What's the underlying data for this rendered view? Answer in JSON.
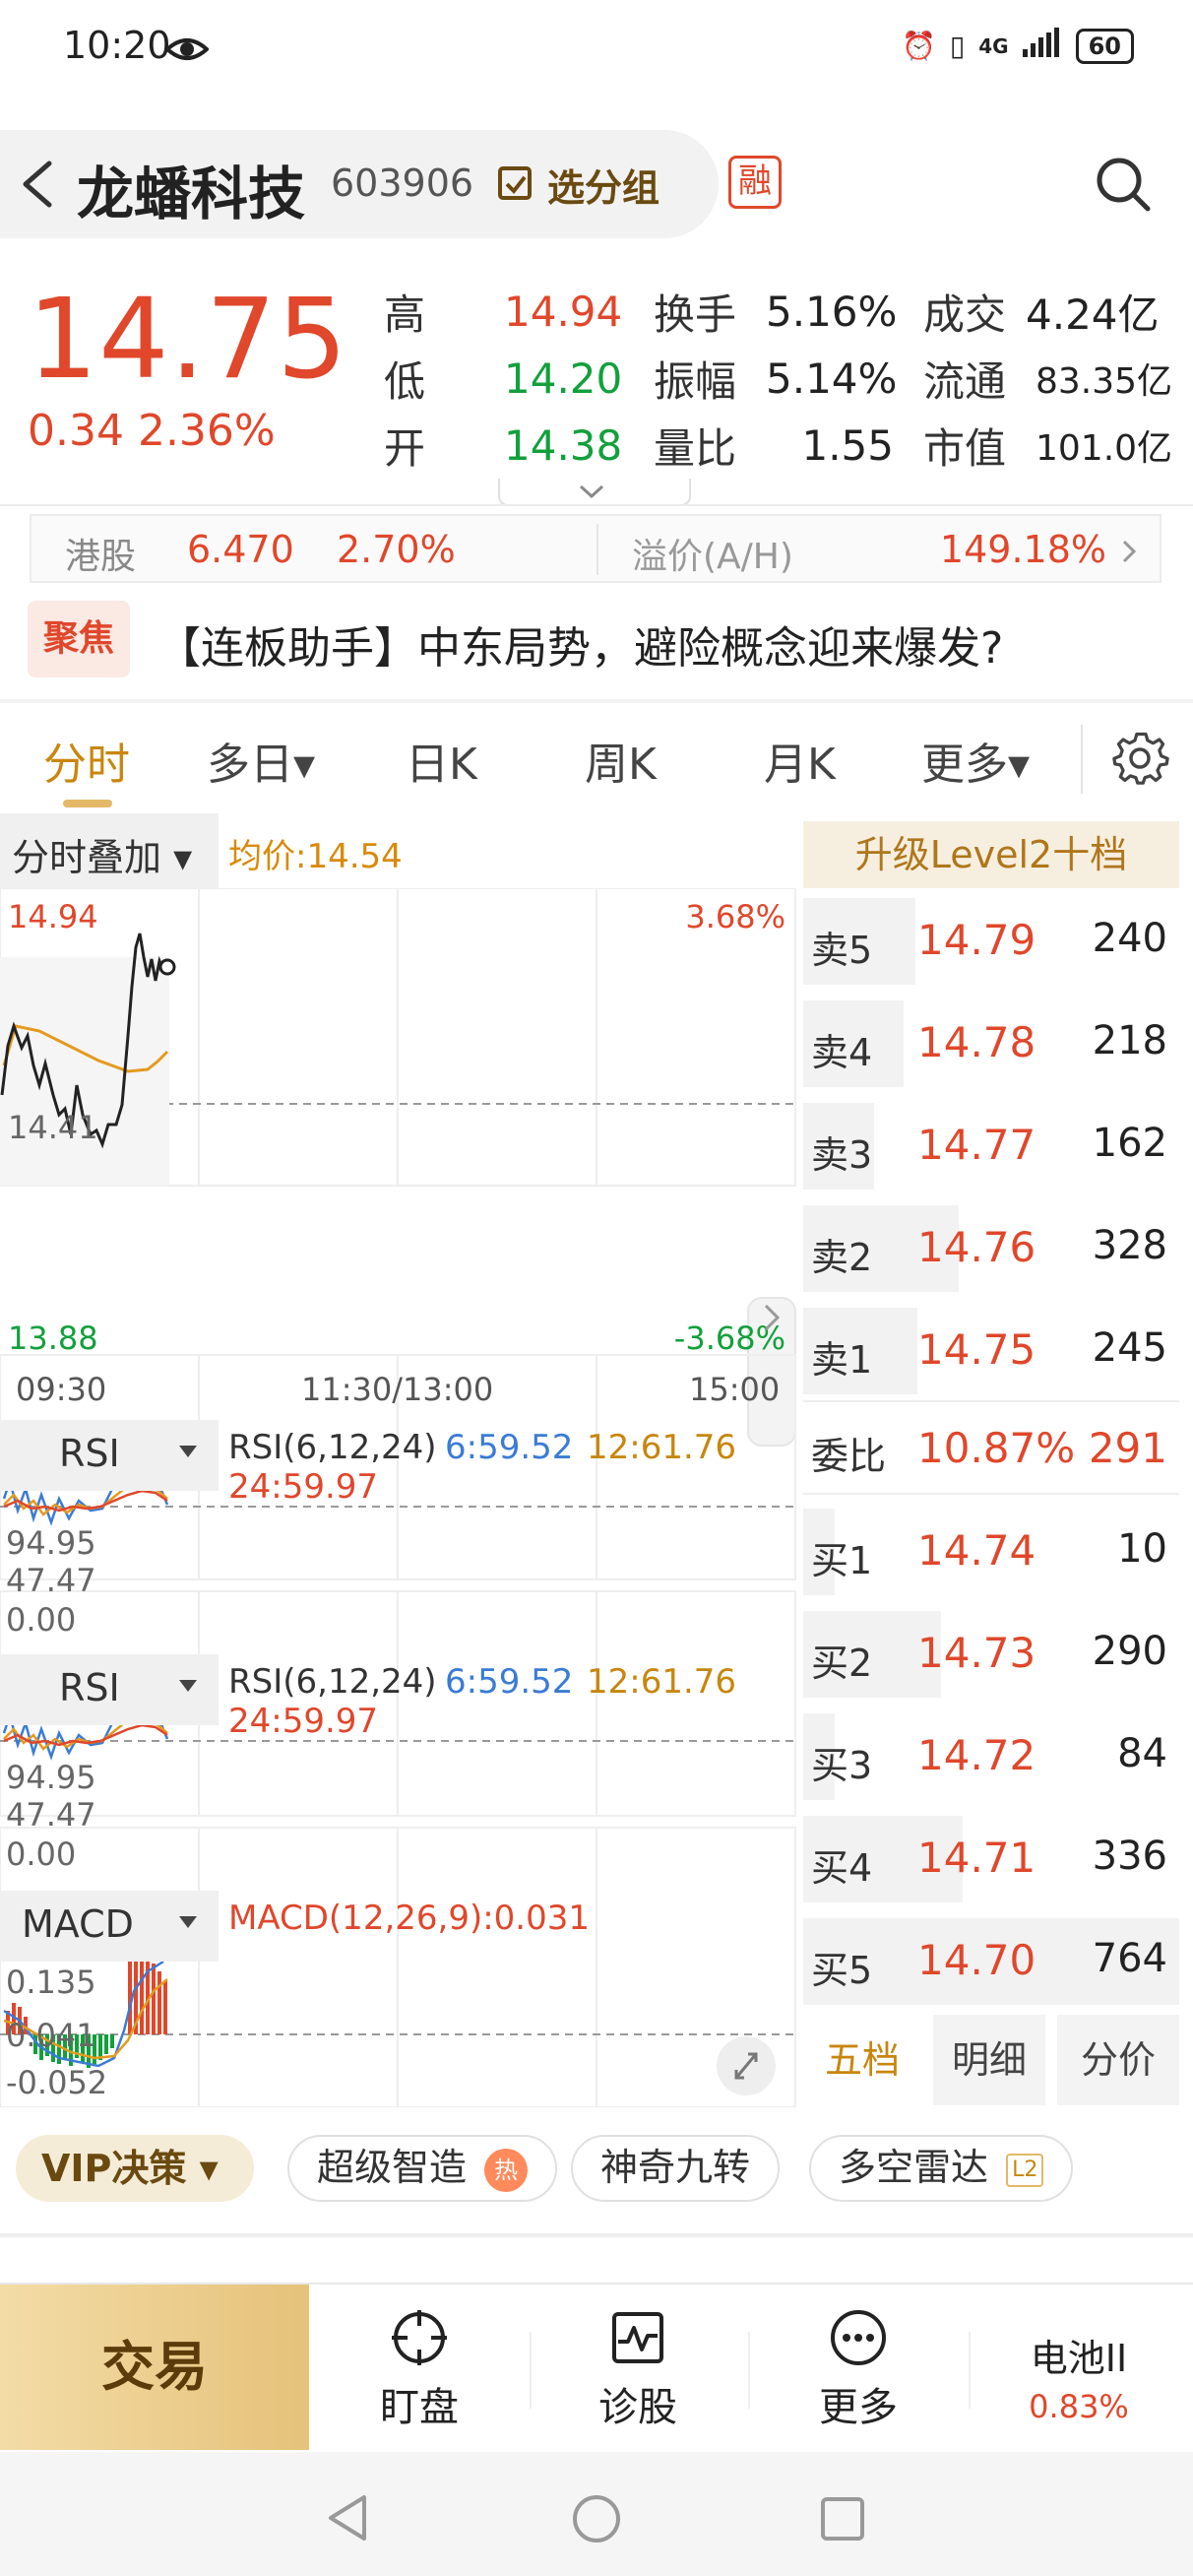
{
  "status_bar": {
    "time": "10:20",
    "network": "4G",
    "battery": "60"
  },
  "header": {
    "stock_name": "龙蟠科技",
    "stock_code": "603906",
    "group_label": "选分组",
    "margin_badge": "融"
  },
  "quote": {
    "price": "14.75",
    "change": "0.34  2.36%",
    "stats": [
      {
        "label": "高",
        "value": "14.94",
        "color": "#e0472b"
      },
      {
        "label": "低",
        "value": "14.20",
        "color": "#12a03c"
      },
      {
        "label": "开",
        "value": "14.38",
        "color": "#12a03c"
      }
    ],
    "stats2": [
      {
        "label": "换手",
        "value": "5.16%"
      },
      {
        "label": "振幅",
        "value": "5.14%"
      },
      {
        "label": "量比",
        "value": "1.55"
      }
    ],
    "stats3": [
      {
        "label": "成交",
        "value": "4.24亿"
      },
      {
        "label": "流通",
        "value": "83.35亿"
      },
      {
        "label": "市值",
        "value": "101.0亿"
      }
    ]
  },
  "hk": {
    "label": "港股",
    "price": "6.470",
    "pct": "2.70%",
    "premium_label": "溢价(A/H)",
    "premium_value": "149.18%"
  },
  "news": {
    "badge": "聚焦",
    "text": "【连板助手】中东局势，避险概念迎来爆发?"
  },
  "tabs": [
    {
      "label": "分时",
      "active": true
    },
    {
      "label": "多日▾",
      "active": false
    },
    {
      "label": "日K",
      "active": false
    },
    {
      "label": "周K",
      "active": false
    },
    {
      "label": "月K",
      "active": false
    },
    {
      "label": "更多▾",
      "active": false
    }
  ],
  "chart": {
    "overlay_label": "分时叠加 ▾",
    "avg_price": "均价:14.54",
    "y_high": "14.94",
    "y_mid": "14.41",
    "y_low": "13.88",
    "pct_high": "3.68%",
    "pct_low": "-3.68%",
    "x_labels": [
      "09:30",
      "11:30/13:00",
      "15:00"
    ],
    "price_line_color": "#222222",
    "avg_line_color": "#e59a1e"
  },
  "indicators": [
    {
      "name": "RSI",
      "params": "RSI(6,12,24)",
      "v1": "6:59.52",
      "v2": "12:61.76",
      "v3": "24:59.97",
      "axis_top": "94.95",
      "axis_mid": "47.47",
      "axis_bottom": "0.00"
    },
    {
      "name": "RSI",
      "params": "RSI(6,12,24)",
      "v1": "6:59.52",
      "v2": "12:61.76",
      "v3": "24:59.97",
      "axis_top": "94.95",
      "axis_mid": "47.47",
      "axis_bottom": "0.00"
    },
    {
      "name": "MACD",
      "params": "MACD(12,26,9):0.031",
      "axis_top": "0.135",
      "axis_mid": "0.041",
      "axis_bottom": "-0.052"
    }
  ],
  "orderbook": {
    "level2_label": "升级Level2十档",
    "asks": [
      {
        "label": "卖5",
        "price": "14.79",
        "vol": "240",
        "bar": 0.55
      },
      {
        "label": "卖4",
        "price": "14.78",
        "vol": "218",
        "bar": 0.5
      },
      {
        "label": "卖3",
        "price": "14.77",
        "vol": "162",
        "bar": 0.37
      },
      {
        "label": "卖2",
        "price": "14.76",
        "vol": "328",
        "bar": 0.75
      },
      {
        "label": "卖1",
        "price": "14.75",
        "vol": "245",
        "bar": 0.56
      }
    ],
    "weibi_label": "委比",
    "weibi_pct": "10.87%",
    "weibi_vol": "291",
    "bids": [
      {
        "label": "买1",
        "price": "14.74",
        "vol": "10",
        "bar": 0.05
      },
      {
        "label": "买2",
        "price": "14.73",
        "vol": "290",
        "bar": 0.66
      },
      {
        "label": "买3",
        "price": "14.72",
        "vol": "84",
        "bar": 0.2
      },
      {
        "label": "买4",
        "price": "14.71",
        "vol": "336",
        "bar": 0.77
      },
      {
        "label": "买5",
        "price": "14.70",
        "vol": "764",
        "bar": 1.0
      }
    ],
    "tabs": [
      "五档",
      "明细",
      "分价"
    ]
  },
  "chips": {
    "vip": "VIP决策 ▾",
    "items": [
      "超级智造",
      "神奇九转",
      "多空雷达"
    ],
    "hot_badge": "热",
    "l2_badge": "L2"
  },
  "actionbar": {
    "trade": "交易",
    "items": [
      "盯盘",
      "诊股",
      "更多"
    ],
    "battery_name": "电池II",
    "battery_pct": "0.83%"
  }
}
